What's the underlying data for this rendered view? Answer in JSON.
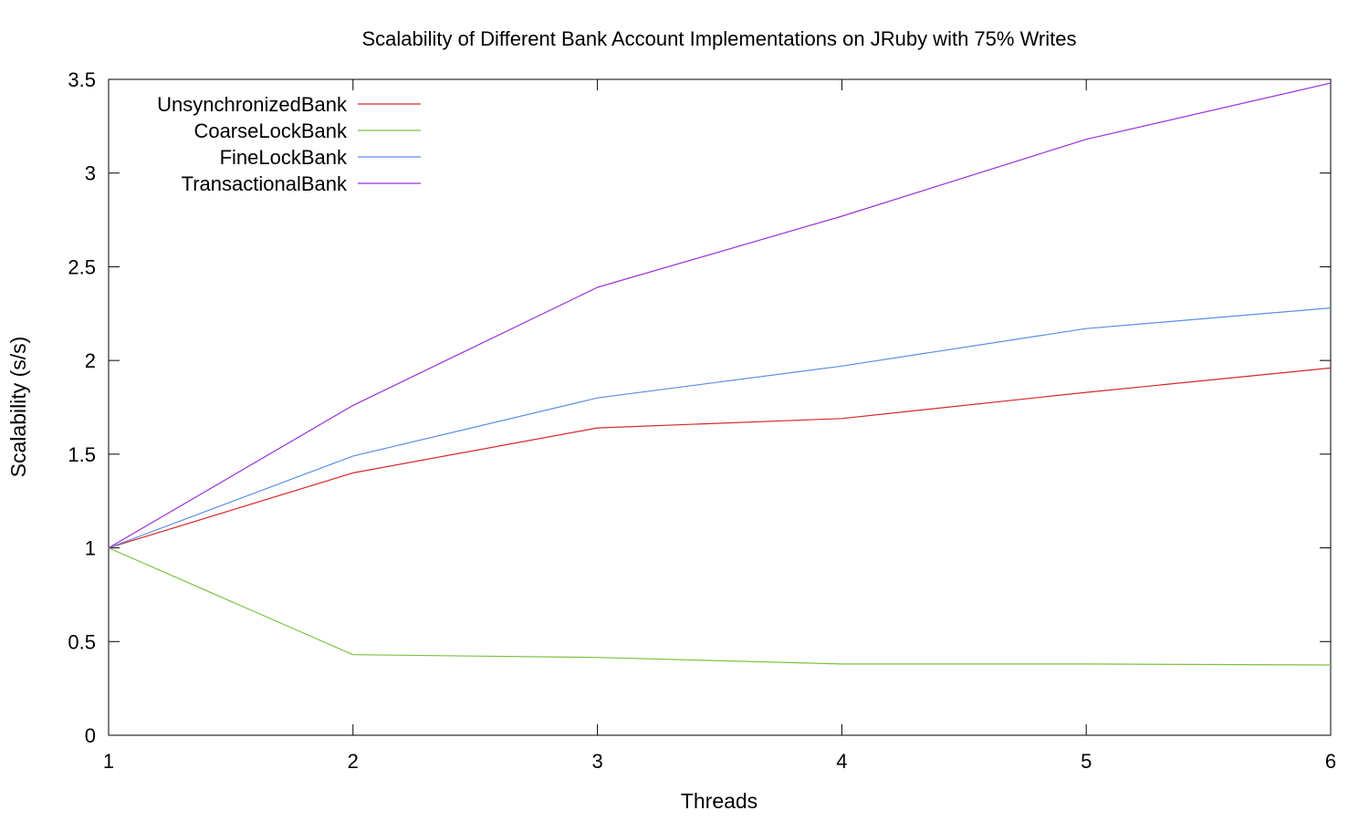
{
  "chart_data": {
    "type": "line",
    "title": "Scalability of Different Bank Account Implementations on JRuby with 75% Writes",
    "xlabel": "Threads",
    "ylabel": "Scalability (s/s)",
    "x": [
      1,
      2,
      3,
      4,
      5,
      6
    ],
    "xlim": [
      1,
      6
    ],
    "ylim": [
      0,
      3.5
    ],
    "x_ticks": [
      "1",
      "2",
      "3",
      "4",
      "5",
      "6"
    ],
    "y_ticks": [
      "0",
      "0.5",
      "1",
      "1.5",
      "2",
      "2.5",
      "3",
      "3.5"
    ],
    "grid": false,
    "legend_position": "top-left",
    "series": [
      {
        "name": "UnsynchronizedBank",
        "color": "#d62728",
        "values": [
          1.0,
          1.4,
          1.64,
          1.69,
          1.83,
          1.96
        ]
      },
      {
        "name": "CoarseLockBank",
        "color": "#7cc242",
        "values": [
          1.0,
          0.43,
          0.415,
          0.38,
          0.38,
          0.375
        ]
      },
      {
        "name": "FineLockBank",
        "color": "#5a8ee8",
        "values": [
          1.0,
          1.49,
          1.8,
          1.97,
          2.17,
          2.28
        ]
      },
      {
        "name": "TransactionalBank",
        "color": "#9b30d9",
        "values": [
          1.0,
          1.76,
          2.39,
          2.77,
          3.18,
          3.48
        ]
      }
    ]
  }
}
